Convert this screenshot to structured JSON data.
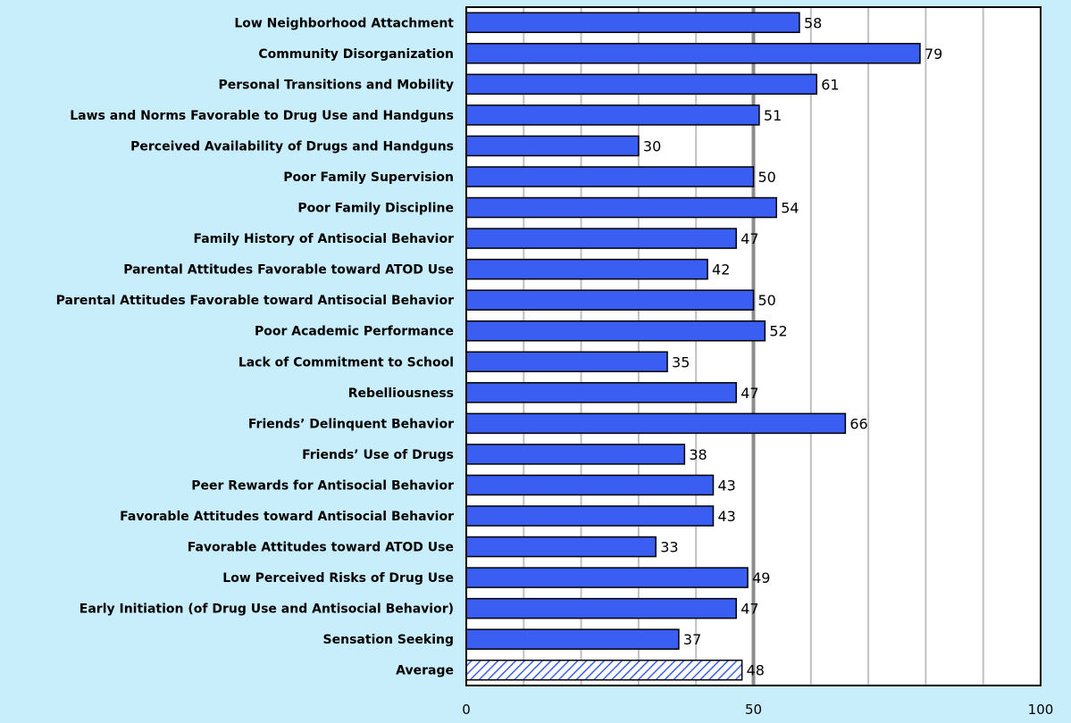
{
  "chart_data": {
    "type": "bar",
    "orientation": "horizontal",
    "title": "",
    "xlabel": "",
    "ylabel": "",
    "xlim": [
      0,
      100
    ],
    "xticks": [
      0,
      50,
      100
    ],
    "grid": true,
    "categories": [
      "Low Neighborhood Attachment",
      "Community Disorganization",
      "Personal Transitions and Mobility",
      "Laws and Norms Favorable to Drug Use and Handguns",
      "Perceived Availability of Drugs and Handguns",
      "Poor Family Supervision",
      "Poor Family Discipline",
      "Family History of Antisocial Behavior",
      "Parental Attitudes Favorable toward ATOD Use",
      "Parental Attitudes Favorable toward Antisocial Behavior",
      "Poor Academic Performance",
      "Lack of Commitment to School",
      "Rebelliousness",
      "Friends’ Delinquent Behavior",
      "Friends’ Use of Drugs",
      "Peer Rewards for Antisocial Behavior",
      "Favorable Attitudes toward Antisocial Behavior",
      "Favorable Attitudes toward ATOD Use",
      "Low Perceived Risks of Drug Use",
      "Early Initiation (of Drug Use and Antisocial Behavior)",
      "Sensation Seeking",
      "Average"
    ],
    "values": [
      58,
      79,
      61,
      51,
      30,
      50,
      54,
      47,
      42,
      50,
      52,
      35,
      47,
      66,
      38,
      43,
      43,
      33,
      49,
      47,
      37,
      48
    ],
    "colors": {
      "bar_fill": "#3a5ef2",
      "bar_stroke": "#000000",
      "average_hatch": "#3a5ef2",
      "background": "#c8eefc",
      "plot_background": "#ffffff",
      "gridline": "#c0c0c0",
      "midline": "#8c8c8c"
    }
  }
}
